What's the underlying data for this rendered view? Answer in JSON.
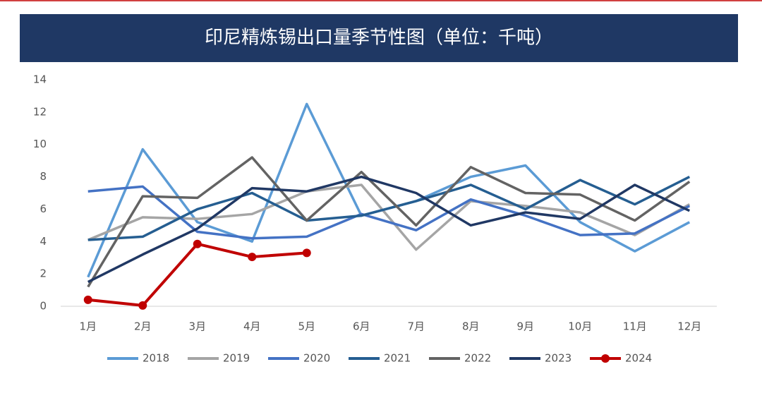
{
  "chart_data": {
    "type": "line",
    "title": "印尼精炼锡出口量季节性图（单位：千吨）",
    "categories": [
      "1月",
      "2月",
      "3月",
      "4月",
      "5月",
      "6月",
      "7月",
      "8月",
      "9月",
      "10月",
      "11月",
      "12月"
    ],
    "ylim": [
      0,
      14
    ],
    "yticks": [
      0,
      2,
      4,
      6,
      8,
      10,
      12,
      14
    ],
    "grid": false,
    "legend": "bottom",
    "series": [
      {
        "name": "2018",
        "color": "#5b9bd5",
        "values": [
          1.8,
          9.7,
          5.2,
          4.0,
          12.5,
          5.6,
          6.5,
          8.0,
          8.7,
          5.2,
          3.4,
          5.2
        ]
      },
      {
        "name": "2019",
        "color": "#a5a5a5",
        "values": [
          4.1,
          5.5,
          5.4,
          5.7,
          7.1,
          7.5,
          3.5,
          6.5,
          6.2,
          5.8,
          4.4,
          6.3
        ]
      },
      {
        "name": "2020",
        "color": "#4472c4",
        "values": [
          7.1,
          7.4,
          4.6,
          4.2,
          4.3,
          5.7,
          4.7,
          6.6,
          5.6,
          4.4,
          4.5,
          6.2
        ]
      },
      {
        "name": "2021",
        "color": "#255e91",
        "values": [
          4.1,
          4.3,
          6.0,
          7.0,
          5.3,
          5.6,
          6.5,
          7.5,
          6.0,
          7.8,
          6.3,
          8.0
        ]
      },
      {
        "name": "2022",
        "color": "#636363",
        "values": [
          1.2,
          6.8,
          6.7,
          9.2,
          5.3,
          8.3,
          5.0,
          8.6,
          7.0,
          6.9,
          5.3,
          7.7
        ]
      },
      {
        "name": "2023",
        "color": "#203864",
        "values": [
          1.5,
          3.2,
          4.8,
          7.3,
          7.1,
          8.0,
          7.0,
          5.0,
          5.8,
          5.4,
          7.5,
          5.9
        ]
      },
      {
        "name": "2024",
        "color": "#c00000",
        "values": [
          0.4,
          0.05,
          3.85,
          3.05,
          3.3,
          null,
          null,
          null,
          null,
          null,
          null,
          null
        ]
      }
    ]
  }
}
